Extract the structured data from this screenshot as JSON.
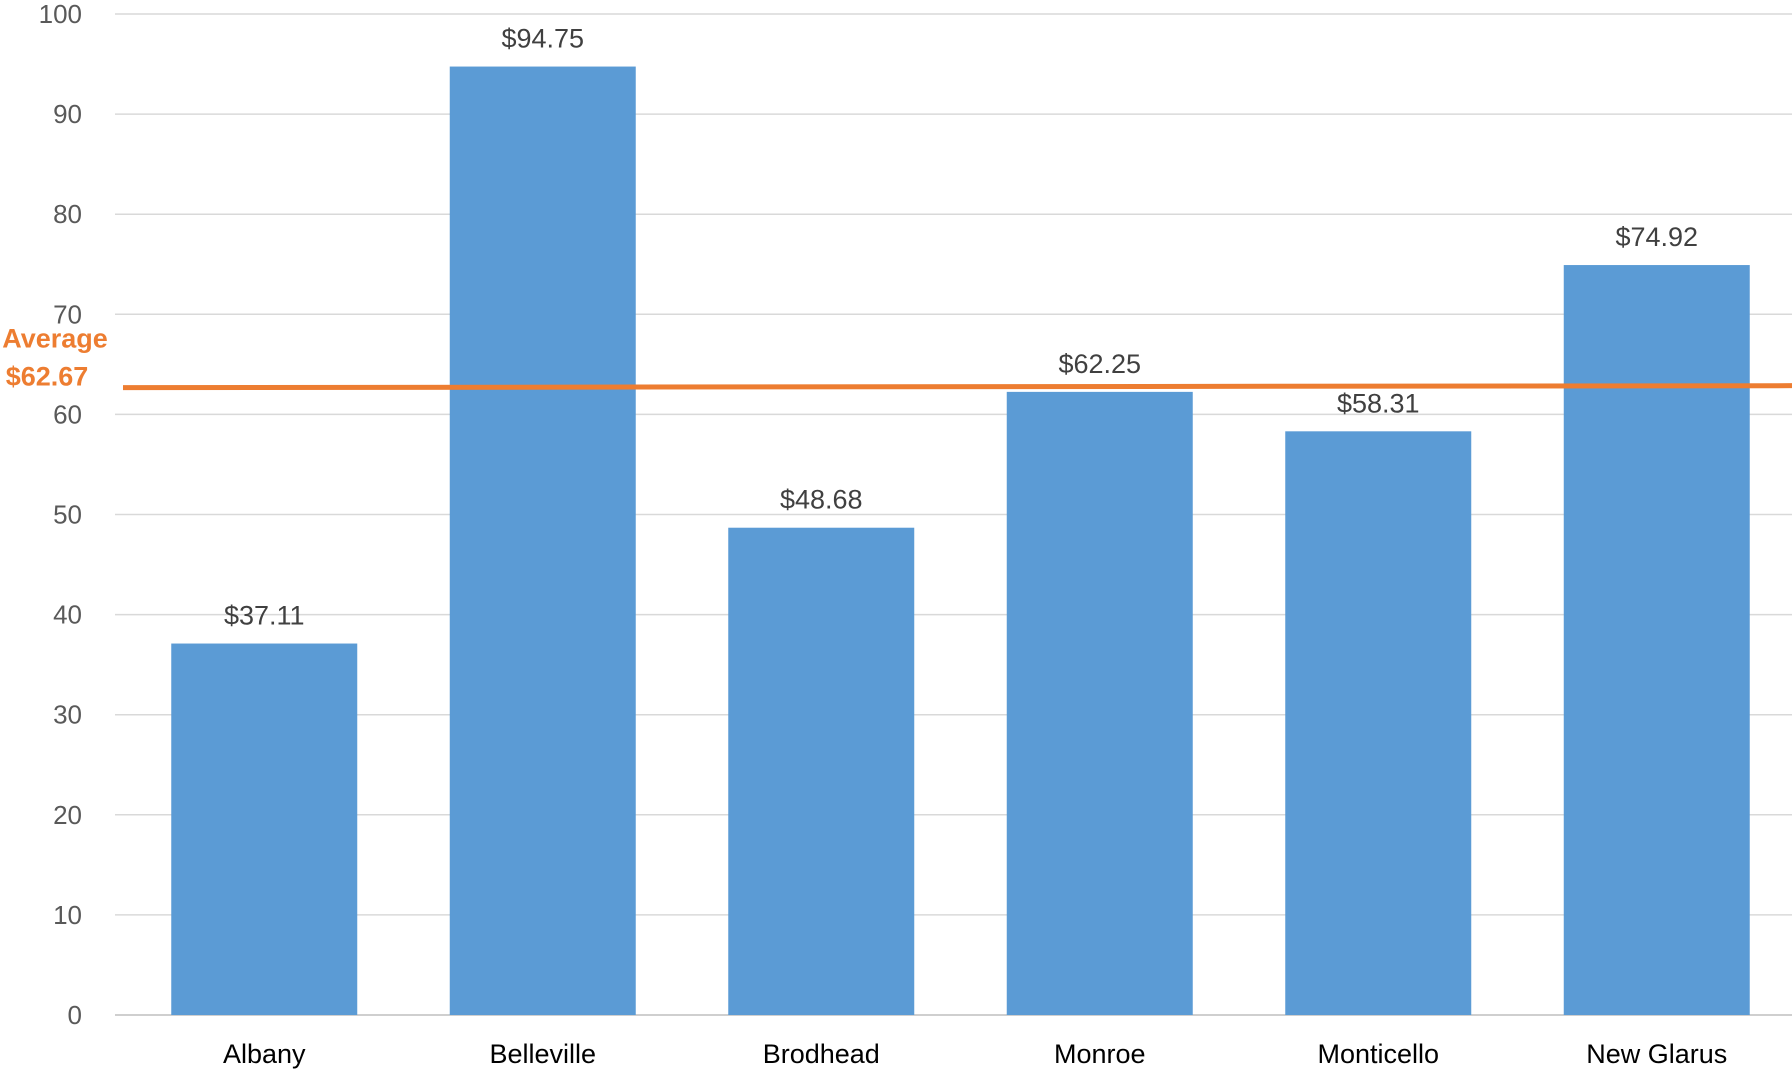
{
  "chart_data": {
    "type": "bar",
    "categories": [
      "Albany",
      "Belleville",
      "Brodhead",
      "Monroe",
      "Monticello",
      "New Glarus"
    ],
    "values": [
      37.11,
      94.75,
      48.68,
      62.25,
      58.31,
      74.92
    ],
    "data_labels": [
      "$37.11",
      "$94.75",
      "$48.68",
      "$62.25",
      "$58.31",
      "$74.92"
    ],
    "ylim": [
      0,
      100
    ],
    "yticks": [
      "0",
      "10",
      "20",
      "30",
      "40",
      "50",
      "60",
      "70",
      "80",
      "90",
      "100"
    ],
    "grid": true,
    "bar_color": "#5b9bd5",
    "reference_line": {
      "value": 62.67,
      "label_line1": "Average",
      "label_line2": "$62.67",
      "color": "#ed7d31"
    }
  }
}
